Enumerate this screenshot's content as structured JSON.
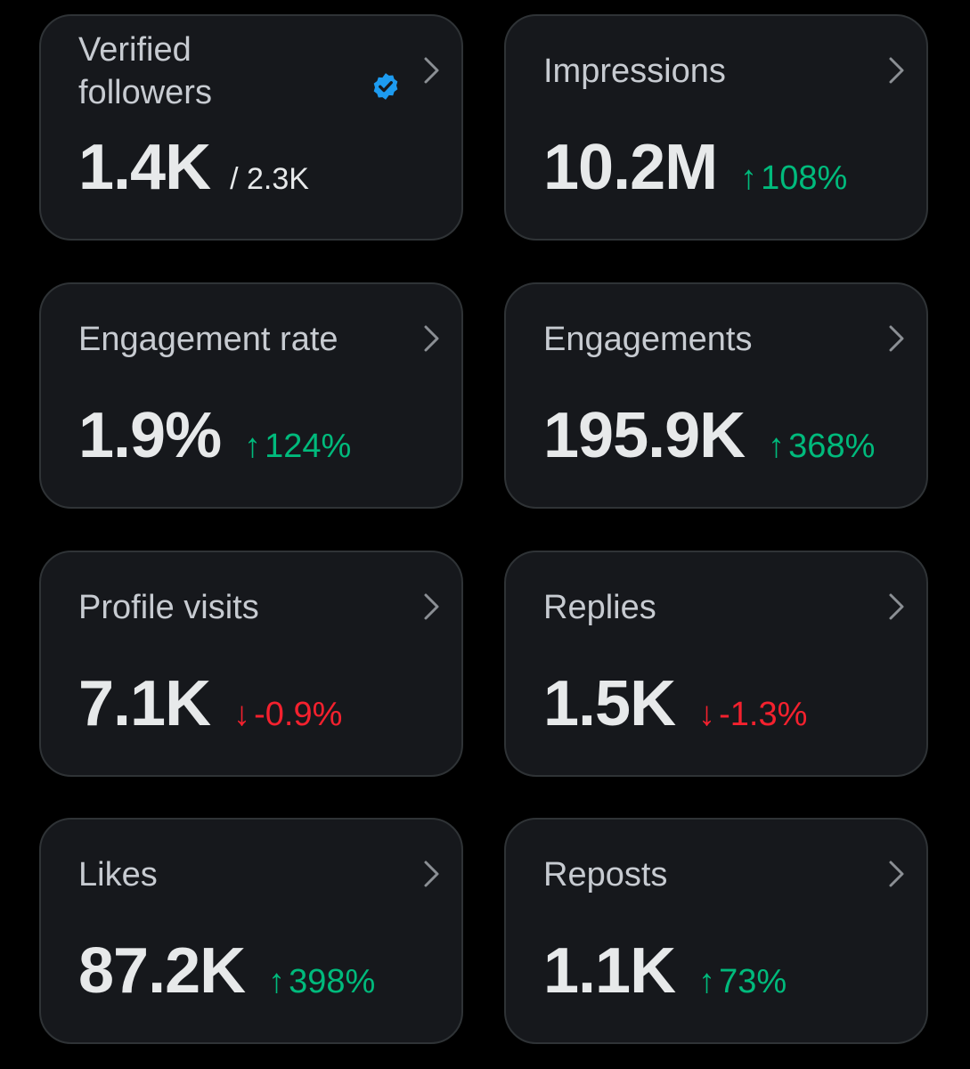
{
  "colors": {
    "background": "#000000",
    "card_bg": "#16181c",
    "card_border": "#2f3336",
    "title_text": "#c7cbd1",
    "value_text": "#e7e9ea",
    "up": "#00ba7c",
    "down": "#f4212e",
    "verified": "#1d9bf0"
  },
  "cards": [
    {
      "title_line1": "Verified",
      "title_line2": "followers",
      "value": "1.4K",
      "denominator": "/ 2.3K",
      "icon": "verified-badge-icon"
    },
    {
      "title": "Impressions",
      "value": "10.2M",
      "change_arrow": "↑",
      "change": "108%",
      "direction": "up"
    },
    {
      "title": "Engagement rate",
      "value": "1.9%",
      "change_arrow": "↑",
      "change": "124%",
      "direction": "up"
    },
    {
      "title": "Engagements",
      "value": "195.9K",
      "change_arrow": "↑",
      "change": "368%",
      "direction": "up"
    },
    {
      "title": "Profile visits",
      "value": "7.1K",
      "change_arrow": "↓",
      "change": "-0.9%",
      "direction": "down"
    },
    {
      "title": "Replies",
      "value": "1.5K",
      "change_arrow": "↓",
      "change": "-1.3%",
      "direction": "down"
    },
    {
      "title": "Likes",
      "value": "87.2K",
      "change_arrow": "↑",
      "change": "398%",
      "direction": "up"
    },
    {
      "title": "Reposts",
      "value": "1.1K",
      "change_arrow": "↑",
      "change": "73%",
      "direction": "up"
    }
  ]
}
